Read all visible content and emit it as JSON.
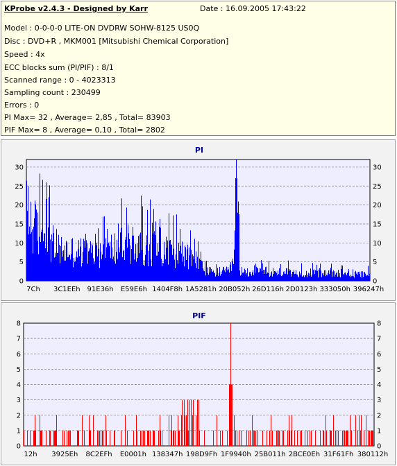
{
  "info": {
    "title": "KProbe v2.4.3 - Designed by Karr",
    "date": "Date : 16.09.2005 17:43:22",
    "lines": [
      "Model : 0-0-0-0 LITE-ON DVDRW SOHW-8125  US0Q",
      "Disc : DVD+R , MKM001 [Mitsubishi Chemical Corporation]",
      "Speed : 4x",
      "ECC blocks sum (PI/PIF) : 8/1",
      "Scanned range : 0 - 4023313",
      "Sampling count : 230499",
      "Errors : 0",
      "PI Max= 32 , Average= 2,85 , Total= 83903",
      "PIF Max= 8 , Average= 0,10 , Total= 2802"
    ]
  },
  "colors": {
    "pi": "#0000ff",
    "pif": "#ff0000",
    "plot_bg": "#eeeeff",
    "grid": "#7f7f7f",
    "info_bg": "#ffffe7"
  },
  "chart_data": [
    {
      "type": "bar",
      "title": "PI",
      "ylim": [
        0,
        32
      ],
      "yticks": [
        0,
        5,
        10,
        15,
        20,
        25,
        30
      ],
      "xticks": [
        "7Ch",
        "3C1EEh",
        "91E36h",
        "E59E6h",
        "1404F8h",
        "1A5281h",
        "20B052h",
        "26D116h",
        "2D0123h",
        "333050h",
        "396247h"
      ],
      "grid": "dashed",
      "profile": [
        [
          0,
          22
        ],
        [
          0.02,
          18
        ],
        [
          0.05,
          14
        ],
        [
          0.1,
          10
        ],
        [
          0.2,
          9
        ],
        [
          0.3,
          12
        ],
        [
          0.35,
          11
        ],
        [
          0.4,
          10
        ],
        [
          0.45,
          9
        ],
        [
          0.5,
          6
        ],
        [
          0.52,
          3
        ],
        [
          0.59,
          3
        ],
        [
          0.6,
          6
        ],
        [
          0.615,
          22
        ],
        [
          0.62,
          3
        ],
        [
          0.7,
          3
        ],
        [
          0.8,
          2.5
        ],
        [
          1.0,
          2
        ]
      ],
      "max": 32,
      "average": 2.85
    },
    {
      "type": "bar",
      "title": "PIF",
      "ylim": [
        0,
        8
      ],
      "yticks": [
        0,
        1,
        2,
        3,
        4,
        5,
        6,
        7,
        8
      ],
      "xticks": [
        "12h",
        "3925Eh",
        "8C2EFh",
        "E0001h",
        "138347h",
        "198D9Fh",
        "1F9940h",
        "25B011h",
        "2BCE0Eh",
        "31F61Fh",
        "380112h"
      ],
      "grid": "dashed",
      "max": 8,
      "average": 0.1
    }
  ]
}
